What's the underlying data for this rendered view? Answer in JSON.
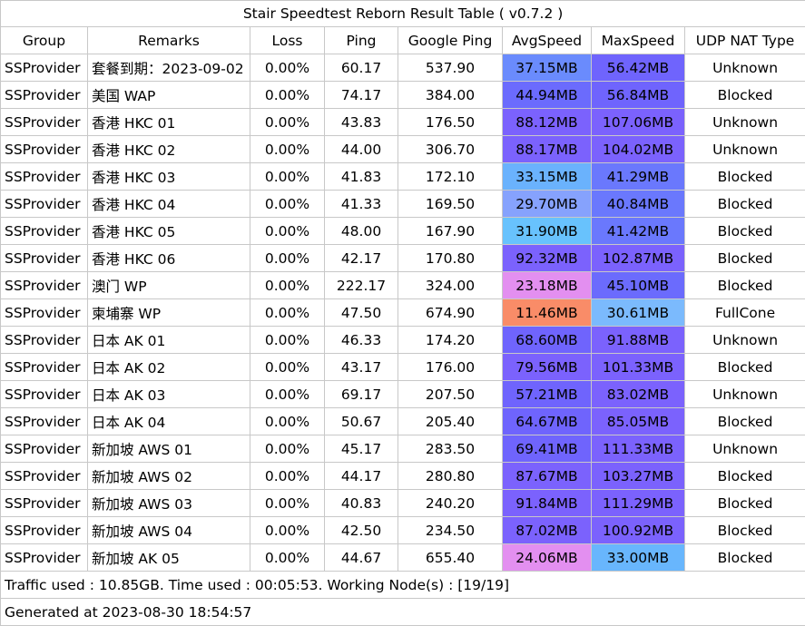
{
  "title": "Stair Speedtest Reborn Result Table ( v0.7.2 )",
  "headers": [
    "Group",
    "Remarks",
    "Loss",
    "Ping",
    "Google Ping",
    "AvgSpeed",
    "MaxSpeed",
    "UDP NAT Type"
  ],
  "rows": [
    {
      "group": "SSProvider",
      "remarks": "套餐到期：2023-09-02",
      "loss": "0.00%",
      "ping": "60.17",
      "gping": "537.90",
      "avg": "37.15MB",
      "avg_color": "#6a8bfd",
      "max": "56.42MB",
      "max_color": "#6f64fd",
      "nat": "Unknown"
    },
    {
      "group": "SSProvider",
      "remarks": "美国 WAP",
      "loss": "0.00%",
      "ping": "74.17",
      "gping": "384.00",
      "avg": "44.94MB",
      "avg_color": "#6b6bfd",
      "max": "56.84MB",
      "max_color": "#6f64fd",
      "nat": "Blocked"
    },
    {
      "group": "SSProvider",
      "remarks": "香港 HKC 01",
      "loss": "0.00%",
      "ping": "43.83",
      "gping": "176.50",
      "avg": "88.12MB",
      "avg_color": "#7b62fd",
      "max": "107.06MB",
      "max_color": "#7b62fd",
      "nat": "Unknown"
    },
    {
      "group": "SSProvider",
      "remarks": "香港 HKC 02",
      "loss": "0.00%",
      "ping": "44.00",
      "gping": "306.70",
      "avg": "88.17MB",
      "avg_color": "#7b62fd",
      "max": "104.02MB",
      "max_color": "#7b62fd",
      "nat": "Unknown"
    },
    {
      "group": "SSProvider",
      "remarks": "香港 HKC 03",
      "loss": "0.00%",
      "ping": "41.83",
      "gping": "172.10",
      "avg": "33.15MB",
      "avg_color": "#6ab2fd",
      "max": "41.29MB",
      "max_color": "#6a78fd",
      "nat": "Blocked"
    },
    {
      "group": "SSProvider",
      "remarks": "香港 HKC 04",
      "loss": "0.00%",
      "ping": "41.33",
      "gping": "169.50",
      "avg": "29.70MB",
      "avg_color": "#86a2fd",
      "max": "40.84MB",
      "max_color": "#6a78fd",
      "nat": "Blocked"
    },
    {
      "group": "SSProvider",
      "remarks": "香港 HKC 05",
      "loss": "0.00%",
      "ping": "48.00",
      "gping": "167.90",
      "avg": "31.90MB",
      "avg_color": "#68c2fd",
      "max": "41.42MB",
      "max_color": "#6a78fd",
      "nat": "Blocked"
    },
    {
      "group": "SSProvider",
      "remarks": "香港 HKC 06",
      "loss": "0.00%",
      "ping": "42.17",
      "gping": "170.80",
      "avg": "92.32MB",
      "avg_color": "#7b62fd",
      "max": "102.87MB",
      "max_color": "#7b62fd",
      "nat": "Blocked"
    },
    {
      "group": "SSProvider",
      "remarks": "澳门 WP",
      "loss": "0.00%",
      "ping": "222.17",
      "gping": "324.00",
      "avg": "23.18MB",
      "avg_color": "#e38ff0",
      "max": "45.10MB",
      "max_color": "#6b6bfd",
      "nat": "Blocked"
    },
    {
      "group": "SSProvider",
      "remarks": "柬埔寨 WP",
      "loss": "0.00%",
      "ping": "47.50",
      "gping": "674.90",
      "avg": "11.46MB",
      "avg_color": "#f98c68",
      "max": "30.61MB",
      "max_color": "#7bbafd",
      "nat": "FullCone"
    },
    {
      "group": "SSProvider",
      "remarks": "日本 AK 01",
      "loss": "0.00%",
      "ping": "46.33",
      "gping": "174.20",
      "avg": "68.60MB",
      "avg_color": "#6f64fd",
      "max": "91.88MB",
      "max_color": "#7b62fd",
      "nat": "Unknown"
    },
    {
      "group": "SSProvider",
      "remarks": "日本 AK 02",
      "loss": "0.00%",
      "ping": "43.17",
      "gping": "176.00",
      "avg": "79.56MB",
      "avg_color": "#7b62fd",
      "max": "101.33MB",
      "max_color": "#7b62fd",
      "nat": "Blocked"
    },
    {
      "group": "SSProvider",
      "remarks": "日本 AK 03",
      "loss": "0.00%",
      "ping": "69.17",
      "gping": "207.50",
      "avg": "57.21MB",
      "avg_color": "#6f64fd",
      "max": "83.02MB",
      "max_color": "#7b62fd",
      "nat": "Unknown"
    },
    {
      "group": "SSProvider",
      "remarks": "日本 AK 04",
      "loss": "0.00%",
      "ping": "50.67",
      "gping": "205.40",
      "avg": "64.67MB",
      "avg_color": "#6f64fd",
      "max": "85.05MB",
      "max_color": "#7b62fd",
      "nat": "Blocked"
    },
    {
      "group": "SSProvider",
      "remarks": "新加坡 AWS 01",
      "loss": "0.00%",
      "ping": "45.17",
      "gping": "283.50",
      "avg": "69.41MB",
      "avg_color": "#6f64fd",
      "max": "111.33MB",
      "max_color": "#7b62fd",
      "nat": "Unknown"
    },
    {
      "group": "SSProvider",
      "remarks": "新加坡 AWS 02",
      "loss": "0.00%",
      "ping": "44.17",
      "gping": "280.80",
      "avg": "87.67MB",
      "avg_color": "#7b62fd",
      "max": "103.27MB",
      "max_color": "#7b62fd",
      "nat": "Blocked"
    },
    {
      "group": "SSProvider",
      "remarks": "新加坡 AWS 03",
      "loss": "0.00%",
      "ping": "40.83",
      "gping": "240.20",
      "avg": "91.84MB",
      "avg_color": "#7b62fd",
      "max": "111.29MB",
      "max_color": "#7b62fd",
      "nat": "Blocked"
    },
    {
      "group": "SSProvider",
      "remarks": "新加坡 AWS 04",
      "loss": "0.00%",
      "ping": "42.50",
      "gping": "234.50",
      "avg": "87.02MB",
      "avg_color": "#7b62fd",
      "max": "100.92MB",
      "max_color": "#7b62fd",
      "nat": "Blocked"
    },
    {
      "group": "SSProvider",
      "remarks": "新加坡 AK 05",
      "loss": "0.00%",
      "ping": "44.67",
      "gping": "655.40",
      "avg": "24.06MB",
      "avg_color": "#e38ff0",
      "max": "33.00MB",
      "max_color": "#68b6fd",
      "nat": "Blocked"
    }
  ],
  "footer": {
    "traffic": "Traffic used : 10.85GB. Time used : 00:05:53. Working Node(s) : [19/19]",
    "generated": "Generated at 2023-08-30 18:54:57"
  }
}
